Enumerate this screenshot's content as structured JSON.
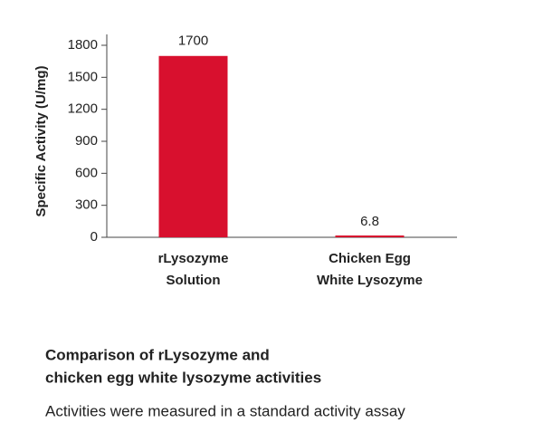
{
  "chart_data": {
    "type": "bar",
    "y_label": "Specific Activity (U/mg)",
    "categories": [
      [
        "rLysozyme",
        "Solution"
      ],
      [
        "Chicken Egg",
        "White Lysozyme"
      ]
    ],
    "values": [
      1700,
      6.8
    ],
    "color": "#d8102e",
    "ylim": [
      0,
      1800
    ],
    "yticks": [
      0,
      300,
      600,
      900,
      1200,
      1500,
      1800
    ],
    "caption_title": [
      "Comparison of rLysozyme and",
      "chicken egg white lysozyme activities"
    ],
    "caption_text": "Activities were measured in a standard activity assay"
  }
}
